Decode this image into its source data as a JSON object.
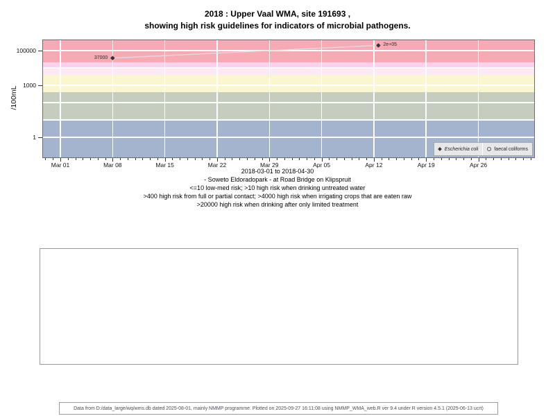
{
  "title": {
    "line1": "2018 : Upper Vaal WMA, site 191693 ,",
    "line2": "showing high risk guidelines for indicators of microbial pathogens."
  },
  "chart_data": {
    "type": "scatter",
    "title": "2018 : Upper Vaal WMA, site 191693 , showing high risk guidelines for indicators of microbial pathogens.",
    "ylabel": "/100mL",
    "y_scale": "log10",
    "ylim": [
      0.07,
      398000
    ],
    "x_range_label": "2018-03-01 to 2018-04-30",
    "y_ticks": [
      {
        "label": "100000",
        "value": 100000
      },
      {
        "label": "1000",
        "value": 1000
      },
      {
        "label": "1",
        "value": 1
      }
    ],
    "gridline_values": [
      1,
      10,
      100,
      1000,
      10000,
      100000
    ],
    "x_ticks": [
      {
        "label": "Mar 01",
        "day": 0
      },
      {
        "label": "Mar 08",
        "day": 7
      },
      {
        "label": "Mar 15",
        "day": 14
      },
      {
        "label": "Mar 22",
        "day": 21
      },
      {
        "label": "Mar 29",
        "day": 28
      },
      {
        "label": "Apr 05",
        "day": 35
      },
      {
        "label": "Apr 12",
        "day": 42
      },
      {
        "label": "Apr 19",
        "day": 49
      },
      {
        "label": "Apr 26",
        "day": 56
      }
    ],
    "bands": [
      {
        "name": "band-red-gt20000",
        "from": 20000,
        "to": 398000,
        "color": "#F8AAB4"
      },
      {
        "name": "band-magenta-10000-20000",
        "from": 10000,
        "to": 20000,
        "color": "#FAD2F0"
      },
      {
        "name": "band-palepink-4000-10000",
        "from": 4000,
        "to": 10000,
        "color": "#FDE9F5"
      },
      {
        "name": "band-yellow-400-4000",
        "from": 400,
        "to": 4000,
        "color": "#FAF7D0"
      },
      {
        "name": "band-green-10-400",
        "from": 10,
        "to": 400,
        "color": "#C5CEBE"
      },
      {
        "name": "band-blue-lt10",
        "from": 0.07,
        "to": 10,
        "color": "#A4B4CE"
      }
    ],
    "line_color": "#dcdcdc",
    "series": [
      {
        "name": "Escherichia coli",
        "marker": "filled-diamond",
        "color": "#333333",
        "points": [
          {
            "date": "2018-03-08",
            "day": 7,
            "value": 37000,
            "label": "37000",
            "label_side": "left"
          },
          {
            "date": "2018-04-13",
            "day": 42.6,
            "value": 200000,
            "label": "2e+05",
            "label_side": "right"
          }
        ]
      },
      {
        "name": "faecal coliforms",
        "marker": "open-circle",
        "color": "#9a9a9a",
        "points": []
      }
    ]
  },
  "legend": {
    "items": [
      {
        "label": "Escherichia coli",
        "marker": "filled-diamond",
        "italic": true
      },
      {
        "label": "faecal coliforms",
        "marker": "open-circle",
        "italic": false
      }
    ]
  },
  "x_axis_note": "2018-03-01 to 2018-04-30",
  "captions": [
    "- Soweto Eldoradopark - at Road Bridge on Klipspruit",
    "<=10 low-med risk; >10 high risk when drinking untreated water",
    ">400 high risk from full or partial contact; >4000 high risk when irrigating crops that are eaten raw",
    ">20000 high risk when drinking after only limited treatment"
  ],
  "footer": {
    "text": "Data from D:/data_large/wq/wms.db dated 2025-08-01, mainly NMMP programme. Plotted on 2025-09-27 16:11:08 using NMMP_WMA_web.R ver 9.4 under R version 4.5.1 (2025-06-13 ucrt)"
  }
}
